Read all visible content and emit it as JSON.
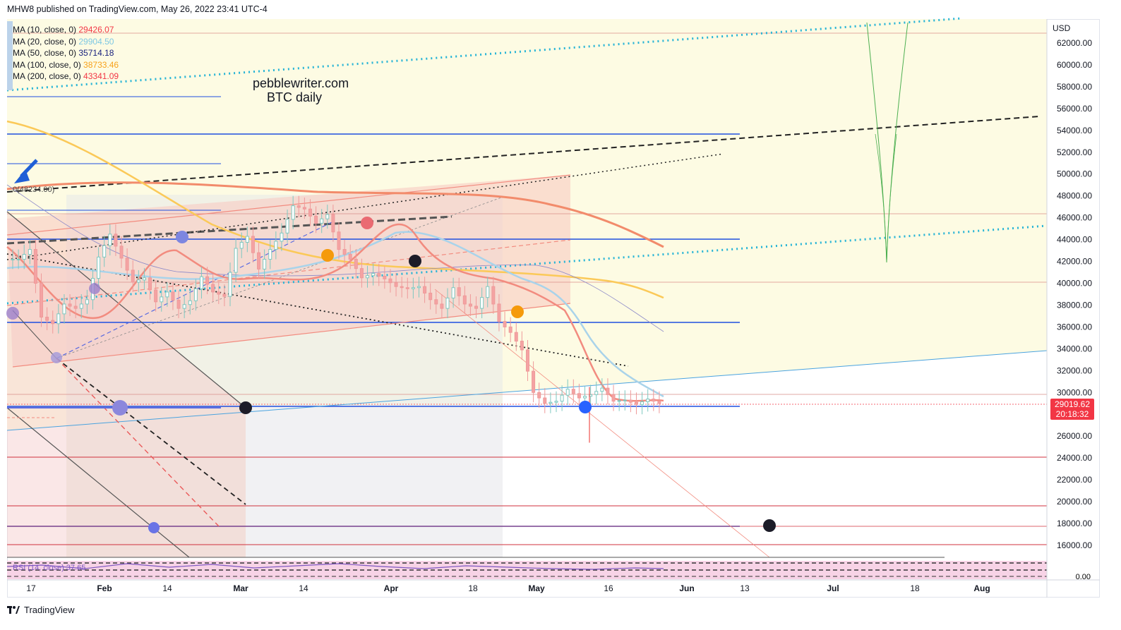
{
  "header": {
    "published_by": "MHW8 published on TradingView.com, May 26, 2022 23:41 UTC-4"
  },
  "watermark": {
    "line1": "pebblewriter.com",
    "line2": "BTC daily"
  },
  "legend": [
    {
      "label": "MA (10, close, 0)",
      "value": "29426.07",
      "color": "#f23645"
    },
    {
      "label": "MA (20, close, 0)",
      "value": "29904.50",
      "color": "#7ec8e3"
    },
    {
      "label": "MA (50, close, 0)",
      "value": "35714.18",
      "color": "#1a237e"
    },
    {
      "label": "MA (100, close, 0)",
      "value": "38733.46",
      "color": "#f7a21b"
    },
    {
      "label": "MA (200, close, 0)",
      "value": "43341.09",
      "color": "#f23645"
    }
  ],
  "price_label": {
    "price": "29019.62",
    "countdown": "20:18:32",
    "color": "#f23645"
  },
  "rsi_legend": "RSI (14, close)  37.65",
  "chart_data": {
    "type": "candlestick",
    "currency": "USD",
    "ylim": [
      14000,
      64500
    ],
    "y_ticks": [
      62000,
      60000,
      58000,
      56000,
      54000,
      52000,
      50000,
      48000,
      46000,
      44000,
      42000,
      40000,
      38000,
      36000,
      34000,
      32000,
      30000,
      28000,
      26000,
      24000,
      22000,
      20000,
      18000,
      16000
    ],
    "y_tick_labels": [
      "62000.00",
      "60000.00",
      "58000.00",
      "56000.00",
      "54000.00",
      "52000.00",
      "50000.00",
      "48000.00",
      "46000.00",
      "44000.00",
      "42000.00",
      "40000.00",
      "38000.00",
      "36000.00",
      "34000.00",
      "32000.00",
      "30000.00",
      "28000.00",
      "26000.00",
      "24000.00",
      "22000.00",
      "20000.00",
      "18000.00",
      "16000.00"
    ],
    "x_tick_labels": [
      "17",
      "Feb",
      "14",
      "Mar",
      "14",
      "Apr",
      "18",
      "May",
      "16",
      "Jun",
      "13",
      "Jul",
      "18",
      "Aug"
    ],
    "rsi_axis_label": "0.00",
    "close_series_approx": [
      42200,
      43100,
      36900,
      36300,
      38100,
      37700,
      38500,
      42400,
      44500,
      42300,
      40100,
      40500,
      38300,
      39200,
      37700,
      38400,
      40600,
      39200,
      38800,
      43200,
      44300,
      41300,
      43100,
      44600,
      47100,
      46800,
      45500,
      46300,
      43100,
      42200,
      40500,
      40900,
      40400,
      39700,
      39500,
      39700,
      38500,
      37700,
      39600,
      38100,
      37700,
      39700,
      36500,
      35500,
      33900,
      30000,
      29000,
      29200,
      30300,
      29500,
      29800,
      30400,
      29200,
      29300,
      28900,
      29400,
      29000
    ],
    "ma10_approx": [
      40000,
      40500,
      41500,
      42000,
      41500,
      40500,
      39500,
      41000,
      43500,
      45500,
      46000,
      44500,
      42000,
      40500,
      39800,
      39200,
      38200,
      37000,
      34000,
      31500,
      30000,
      29500,
      29400
    ],
    "ma20_approx": [
      39000,
      39500,
      40000,
      40500,
      41500,
      42500,
      43200,
      42800,
      42000,
      41200,
      40500,
      40000,
      39200,
      37500,
      35500,
      33000,
      31000,
      30000,
      29900
    ],
    "ma50_approx": [
      45500,
      43000,
      41500,
      40800,
      40400,
      40300,
      40500,
      41500,
      42200,
      42300,
      41900,
      41000,
      39700,
      38200,
      37100,
      36000
    ],
    "ma100_approx": [
      54500,
      52000,
      48500,
      45500,
      43500,
      42500,
      41800,
      41300,
      41000,
      40800,
      40600,
      40400,
      40000,
      39500,
      38700
    ],
    "ma200_approx": [
      48600,
      48900,
      49200,
      49400,
      49300,
      49000,
      48600,
      48200,
      47700,
      47000,
      46000,
      44800,
      43300
    ],
    "horizontal_levels": [
      62800,
      57000,
      53600,
      51000,
      46800,
      44100,
      43000,
      36400,
      28800,
      24100,
      19600,
      17800,
      16000
    ],
    "last_price": 29019.62
  }
}
